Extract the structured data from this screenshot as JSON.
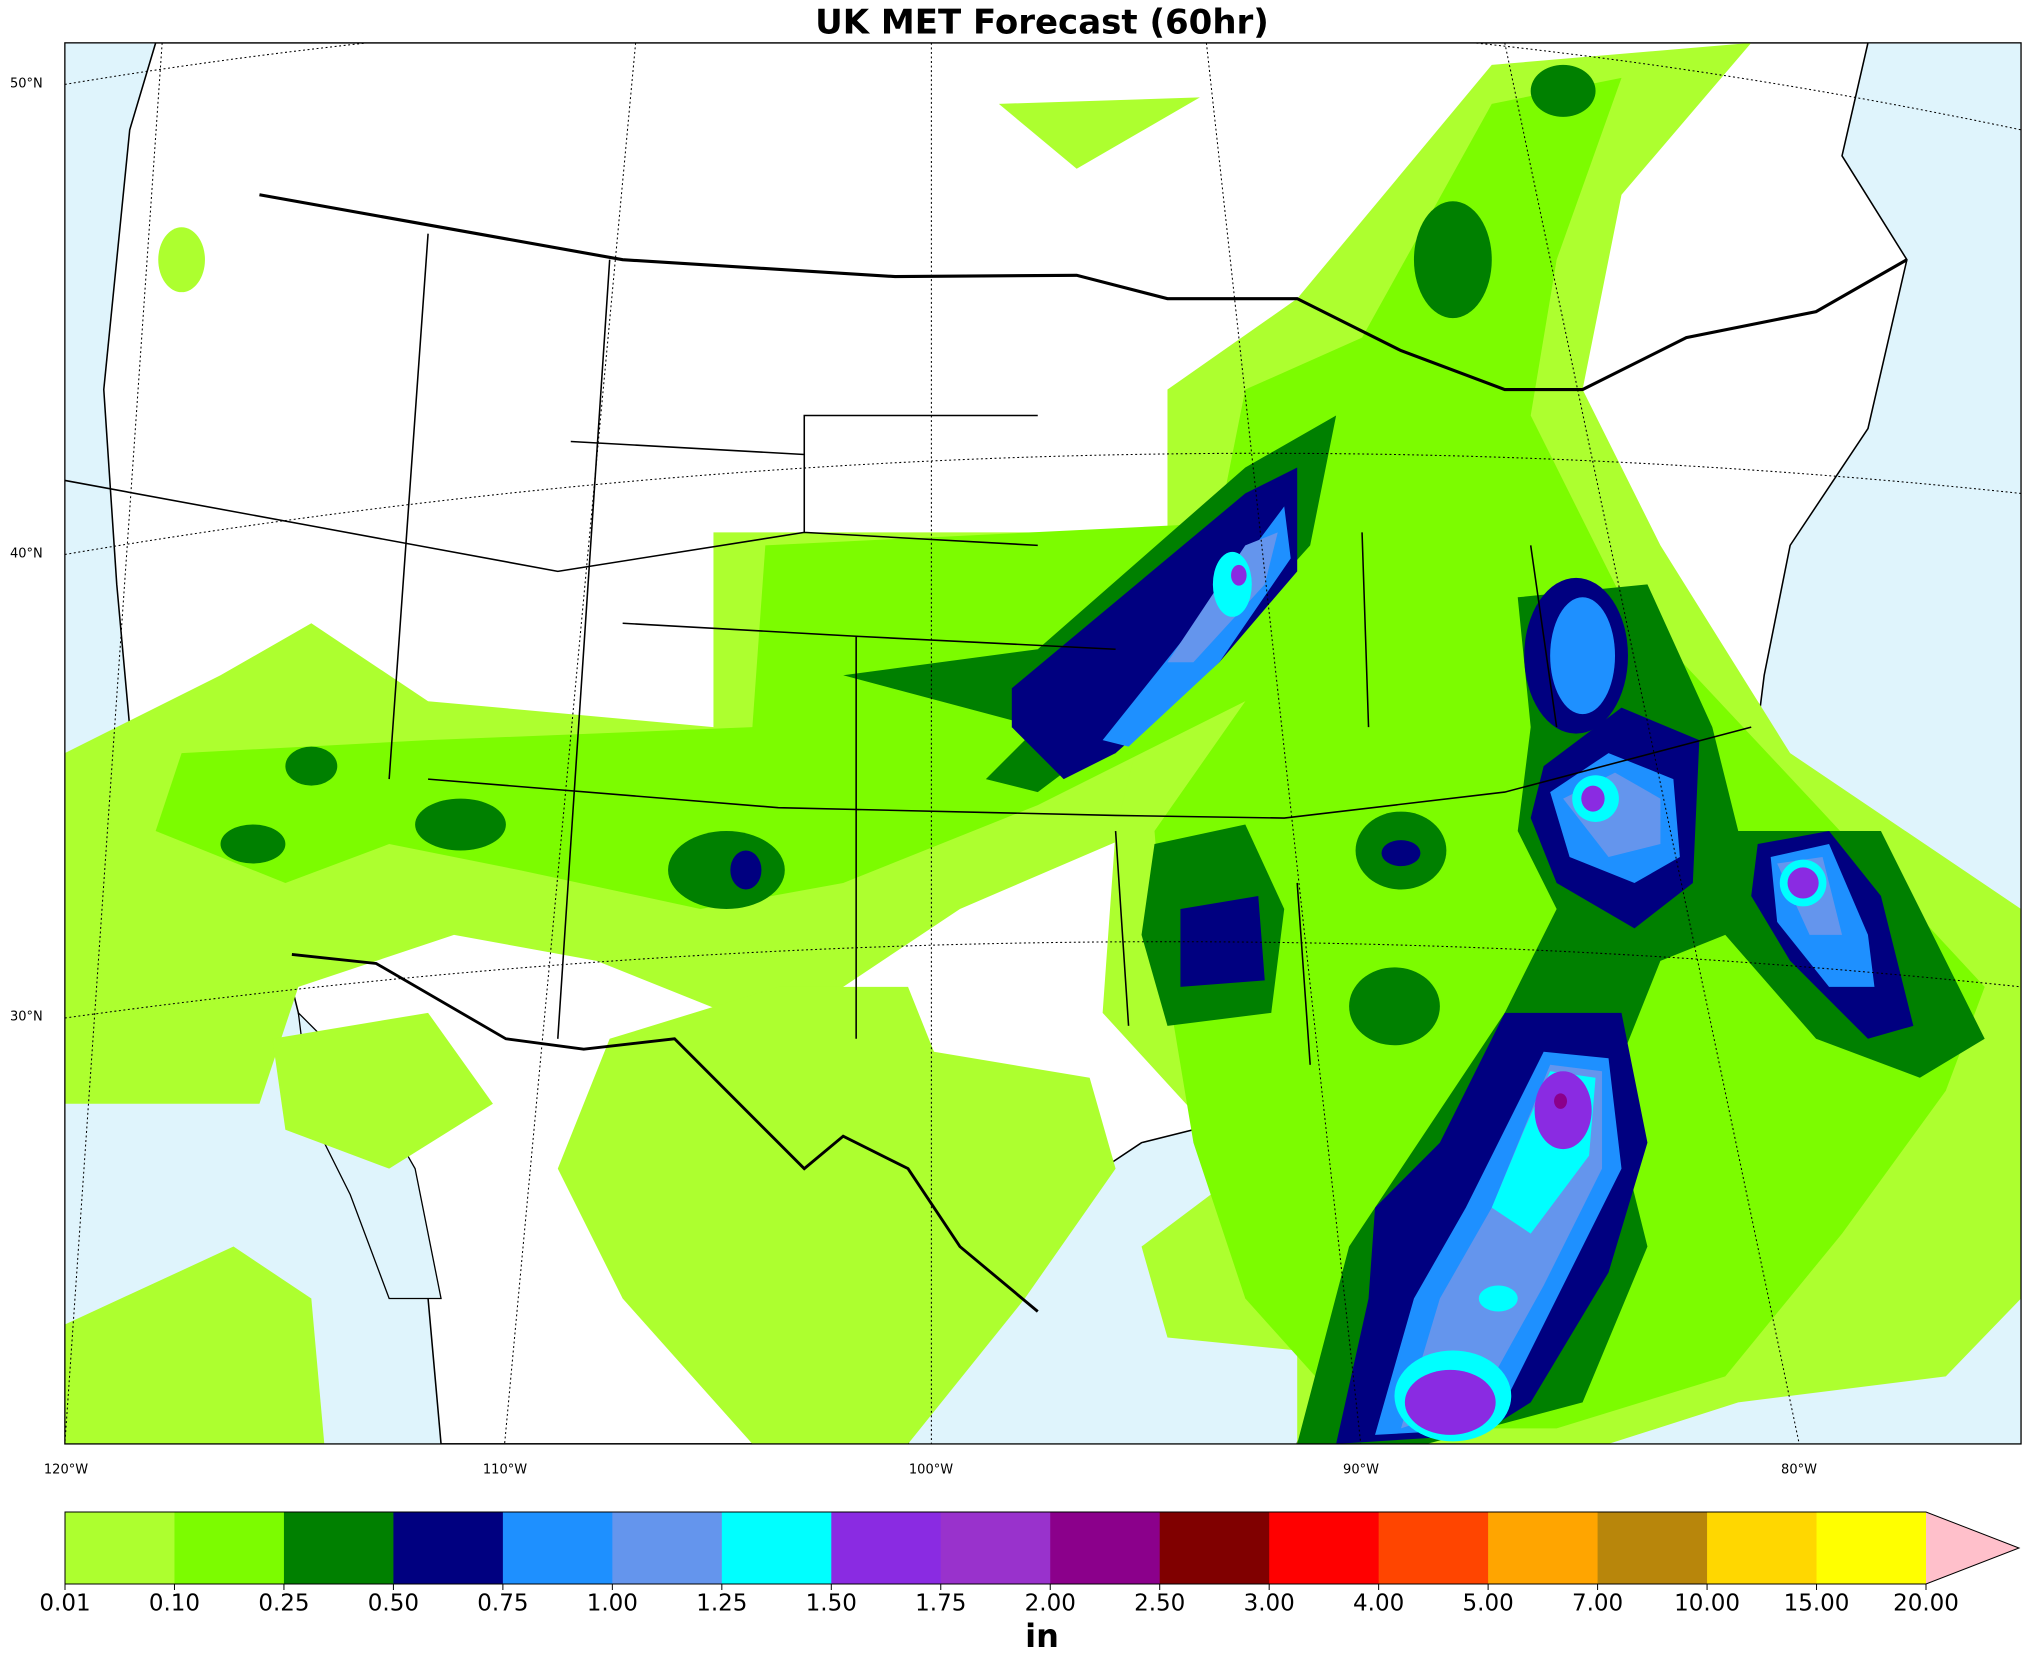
{
  "map": {
    "title": "UK MET Forecast (60hr)",
    "lat_labels": [
      "50°N",
      "40°N",
      "30°N"
    ],
    "lon_labels": [
      "120°W",
      "110°W",
      "100°W",
      "90°W",
      "80°W"
    ],
    "colorbar": {
      "label": "in",
      "levels": [
        {
          "value": 0.01,
          "label": "0.01"
        },
        {
          "value": 0.1,
          "label": "0.10"
        },
        {
          "value": 0.25,
          "label": "0.25"
        },
        {
          "value": 0.5,
          "label": "0.50"
        },
        {
          "value": 0.75,
          "label": "0.75"
        },
        {
          "value": 1,
          "label": "1.00"
        },
        {
          "value": 1.25,
          "label": "1.25"
        },
        {
          "value": 1.5,
          "label": "1.50"
        },
        {
          "value": 1.75,
          "label": "1.75"
        },
        {
          "value": 2,
          "label": "2.00"
        },
        {
          "value": 2.5,
          "label": "2.50"
        },
        {
          "value": 3,
          "label": "3.00"
        },
        {
          "value": 4,
          "label": "4.00"
        },
        {
          "value": 5,
          "label": "5.00"
        },
        {
          "value": 7,
          "label": "7.00"
        },
        {
          "value": 10,
          "label": "10.00"
        },
        {
          "value": 15,
          "label": "15.00"
        },
        {
          "value": 20,
          "label": "20.00"
        }
      ],
      "colors": [
        "#adff2f",
        "#7cfc00",
        "#008000",
        "#000080",
        "#1e90ff",
        "#6495ed",
        "#00ffff",
        "#8a2be2",
        "#9932cc",
        "#8b008b",
        "#800000",
        "#ff0000",
        "#ff4500",
        "#ffa500",
        "#b8860b",
        "#ffd700",
        "#ffff00"
      ],
      "extend_color": "#ffc0cb"
    }
  }
}
